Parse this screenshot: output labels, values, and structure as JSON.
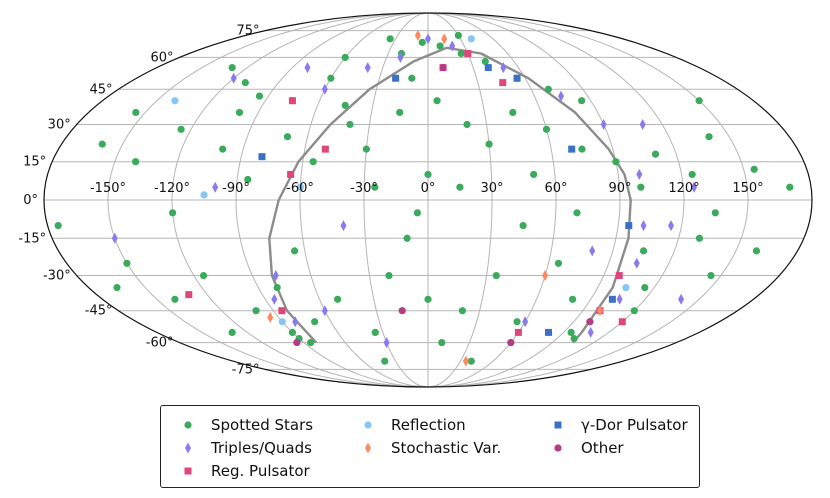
{
  "chart_data": {
    "type": "scatter",
    "projection": "mollweide",
    "grid": true,
    "legend_position": "bottom",
    "lon_ticks": [
      -150,
      -120,
      -90,
      -60,
      -30,
      0,
      30,
      60,
      90,
      120,
      150
    ],
    "lat_ticks": [
      75,
      60,
      45,
      30,
      15,
      0,
      -15,
      -30,
      -45,
      -60,
      -75
    ],
    "lon_tick_labels": [
      "-150°",
      "-120°",
      "-90°",
      "-60°",
      "-30°",
      "0°",
      "30°",
      "60°",
      "90°",
      "120°",
      "150°"
    ],
    "lat_tick_labels": [
      "75°",
      "60°",
      "45°",
      "30°",
      "15°",
      "0°",
      "-15°",
      "-30°",
      "-45°",
      "-60°",
      "-75°"
    ],
    "ecliptic_curve": {
      "points": [
        [
          -81,
          -60
        ],
        [
          -82,
          -45
        ],
        [
          -80,
          -30
        ],
        [
          -76,
          -15
        ],
        [
          -70,
          0
        ],
        [
          -62,
          15
        ],
        [
          -50,
          30
        ],
        [
          -34,
          45
        ],
        [
          -10,
          58
        ],
        [
          15,
          65
        ],
        [
          40,
          62
        ],
        [
          62,
          50
        ],
        [
          78,
          35
        ],
        [
          88,
          20
        ],
        [
          93,
          10
        ],
        [
          95,
          0
        ],
        [
          96,
          -15
        ],
        [
          98,
          -35
        ],
        [
          102,
          -55
        ],
        [
          105,
          -60
        ]
      ]
    },
    "series": [
      {
        "name": "Spotted Stars",
        "color": "#3aaa5c",
        "marker": "circle",
        "points": [
          [
            -130,
            55
          ],
          [
            -110,
            48
          ],
          [
            -95,
            42
          ],
          [
            -75,
            40
          ],
          [
            -60,
            50
          ],
          [
            -45,
            38
          ],
          [
            -20,
            62
          ],
          [
            -5,
            68
          ],
          [
            10,
            66
          ],
          [
            25,
            62
          ],
          [
            40,
            58
          ],
          [
            55,
            50
          ],
          [
            70,
            45
          ],
          [
            85,
            40
          ],
          [
            -160,
            22
          ],
          [
            -140,
            15
          ],
          [
            -125,
            28
          ],
          [
            -100,
            20
          ],
          [
            -85,
            8
          ],
          [
            -70,
            25
          ],
          [
            -55,
            15
          ],
          [
            -40,
            30
          ],
          [
            -30,
            20
          ],
          [
            -15,
            35
          ],
          [
            5,
            40
          ],
          [
            20,
            30
          ],
          [
            30,
            22
          ],
          [
            45,
            35
          ],
          [
            60,
            28
          ],
          [
            75,
            20
          ],
          [
            90,
            15
          ],
          [
            100,
            5
          ],
          [
            110,
            18
          ],
          [
            125,
            10
          ],
          [
            140,
            25
          ],
          [
            155,
            12
          ],
          [
            170,
            5
          ],
          [
            -175,
            -10
          ],
          [
            -165,
            -35
          ],
          [
            -150,
            -25
          ],
          [
            -140,
            -40
          ],
          [
            -130,
            -55
          ],
          [
            -115,
            -30
          ],
          [
            -100,
            -45
          ],
          [
            -90,
            -58
          ],
          [
            -80,
            -35
          ],
          [
            -65,
            -20
          ],
          [
            -50,
            -40
          ],
          [
            -35,
            -55
          ],
          [
            -20,
            -30
          ],
          [
            -10,
            -15
          ],
          [
            0,
            -40
          ],
          [
            10,
            -60
          ],
          [
            20,
            -45
          ],
          [
            35,
            -30
          ],
          [
            45,
            -10
          ],
          [
            55,
            -50
          ],
          [
            65,
            -25
          ],
          [
            80,
            -40
          ],
          [
            95,
            -55
          ],
          [
            105,
            -20
          ],
          [
            115,
            -35
          ],
          [
            130,
            -15
          ],
          [
            145,
            -30
          ],
          [
            160,
            -20
          ],
          [
            0,
            10
          ],
          [
            -5,
            -5
          ],
          [
            15,
            5
          ],
          [
            -25,
            5
          ],
          [
            50,
            10
          ],
          [
            70,
            -5
          ],
          [
            -60,
            60
          ],
          [
            30,
            72
          ],
          [
            -35,
            70
          ],
          [
            -120,
            -5
          ],
          [
            120,
            -45
          ],
          [
            100,
            -50
          ],
          [
            102,
            -58
          ],
          [
            -85,
            -60
          ],
          [
            -90,
            -55
          ],
          [
            -70,
            -50
          ],
          [
            -100,
            35
          ],
          [
            135,
            -5
          ],
          [
            150,
            40
          ],
          [
            -155,
            35
          ],
          [
            60,
            -60
          ],
          [
            -10,
            50
          ],
          [
            40,
            -70
          ],
          [
            -40,
            -70
          ]
        ]
      },
      {
        "name": "Triples/Quads",
        "color": "#8a7af0",
        "marker": "diamond",
        "points": [
          [
            -120,
            50
          ],
          [
            -80,
            55
          ],
          [
            -60,
            45
          ],
          [
            -40,
            55
          ],
          [
            -20,
            60
          ],
          [
            0,
            70
          ],
          [
            20,
            66
          ],
          [
            50,
            55
          ],
          [
            75,
            42
          ],
          [
            90,
            30
          ],
          [
            100,
            10
          ],
          [
            102,
            -10
          ],
          [
            104,
            -25
          ],
          [
            106,
            -40
          ],
          [
            108,
            -55
          ],
          [
            -82,
            -50
          ],
          [
            -85,
            -40
          ],
          [
            -78,
            -30
          ],
          [
            -60,
            -45
          ],
          [
            -40,
            -10
          ],
          [
            -150,
            -15
          ],
          [
            125,
            5
          ],
          [
            140,
            -40
          ],
          [
            110,
            30
          ],
          [
            115,
            -10
          ],
          [
            80,
            -20
          ],
          [
            -100,
            5
          ],
          [
            60,
            -50
          ],
          [
            -30,
            -60
          ]
        ]
      },
      {
        "name": "Reg. Pulsator",
        "color": "#e0457b",
        "marker": "square",
        "points": [
          [
            -75,
            40
          ],
          [
            10,
            55
          ],
          [
            45,
            48
          ],
          [
            -65,
            10
          ],
          [
            98,
            -30
          ],
          [
            100,
            -45
          ],
          [
            -85,
            -45
          ],
          [
            -130,
            -38
          ],
          [
            120,
            -50
          ],
          [
            60,
            -55
          ],
          [
            30,
            62
          ],
          [
            -50,
            20
          ]
        ]
      },
      {
        "name": "Reflection",
        "color": "#86c5f5",
        "marker": "circle",
        "points": [
          [
            -140,
            40
          ],
          [
            -105,
            2
          ],
          [
            -60,
            5
          ],
          [
            -90,
            -50
          ],
          [
            40,
            70
          ],
          [
            105,
            -35
          ]
        ]
      },
      {
        "name": "Stochastic Var.",
        "color": "#fb8a62",
        "marker": "diamond",
        "points": [
          [
            -10,
            72
          ],
          [
            15,
            70
          ],
          [
            100,
            -45
          ],
          [
            60,
            -30
          ],
          [
            -95,
            -48
          ],
          [
            35,
            -70
          ]
        ]
      },
      {
        "name": "γ-Dor Pulsator",
        "color": "#3a70c8",
        "marker": "square",
        "points": [
          [
            -80,
            17
          ],
          [
            -20,
            50
          ],
          [
            40,
            55
          ],
          [
            70,
            20
          ],
          [
            102,
            -40
          ],
          [
            95,
            -10
          ],
          [
            80,
            -55
          ],
          [
            55,
            50
          ]
        ]
      },
      {
        "name": "Other",
        "color": "#b53a88",
        "marker": "circle",
        "points": [
          [
            -15,
            -45
          ],
          [
            60,
            -60
          ],
          [
            100,
            -50
          ],
          [
            -95,
            -60
          ],
          [
            10,
            55
          ]
        ]
      }
    ]
  },
  "legend": {
    "items": [
      {
        "label": "Spotted Stars",
        "color": "#3aaa5c",
        "marker": "circle"
      },
      {
        "label": "Reflection",
        "color": "#86c5f5",
        "marker": "circle"
      },
      {
        "label": "γ-Dor Pulsator",
        "color": "#3a70c8",
        "marker": "square"
      },
      {
        "label": "Triples/Quads",
        "color": "#8a7af0",
        "marker": "diamond"
      },
      {
        "label": "Stochastic Var.",
        "color": "#fb8a62",
        "marker": "diamond"
      },
      {
        "label": "Other",
        "color": "#b53a88",
        "marker": "circle"
      },
      {
        "label": "Reg. Pulsator",
        "color": "#e0457b",
        "marker": "square"
      }
    ]
  }
}
